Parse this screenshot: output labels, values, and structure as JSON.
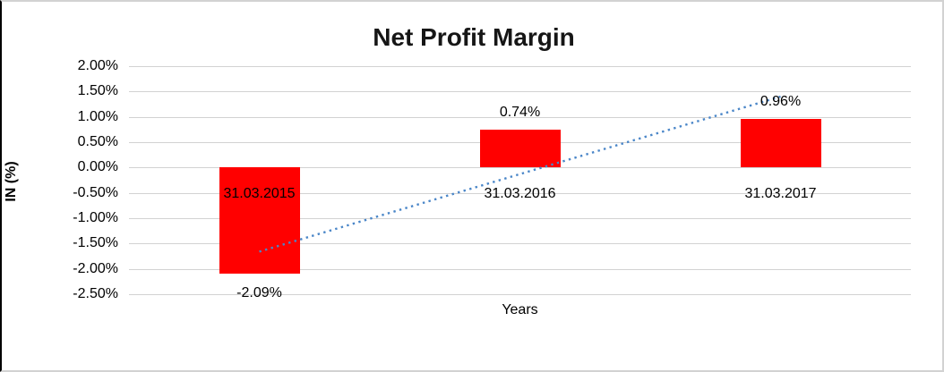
{
  "chart_data": {
    "type": "bar",
    "title": "Net Profit Margin",
    "xlabel": "Years",
    "ylabel": "IN (%)",
    "categories": [
      "31.03.2015",
      "31.03.2016",
      "31.03.2017"
    ],
    "values": [
      -2.09,
      0.74,
      0.96
    ],
    "data_labels": [
      "-2.09%",
      "0.74%",
      "0.96%"
    ],
    "yticks": [
      2.0,
      1.5,
      1.0,
      0.5,
      0.0,
      -0.5,
      -1.0,
      -1.5,
      -2.0,
      -2.5
    ],
    "ytick_labels": [
      "2.00%",
      "1.50%",
      "1.00%",
      "0.50%",
      "0.00%",
      "-0.50%",
      "-1.00%",
      "-1.50%",
      "-2.00%",
      "-2.50%"
    ],
    "ylim": [
      -2.5,
      2.0
    ],
    "grid": true,
    "legend": "none",
    "bar_color": "#ff0000",
    "trendline": {
      "type": "linear",
      "style": "dotted",
      "color": "#4a86c8",
      "start_value": -1.66,
      "end_value": 1.4
    }
  }
}
